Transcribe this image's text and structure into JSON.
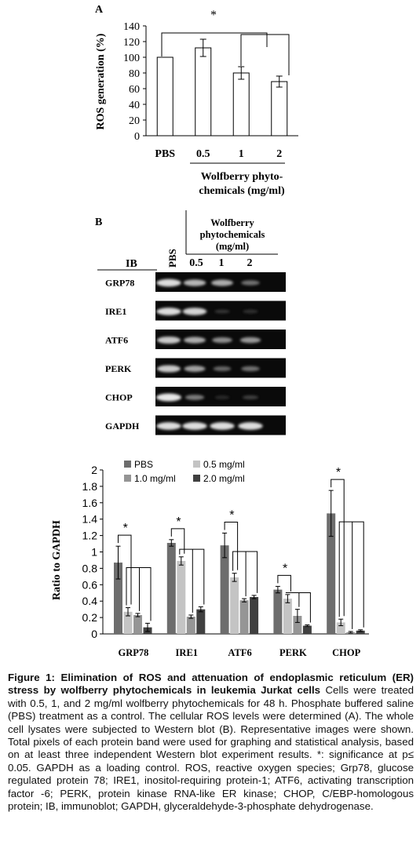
{
  "panel_a": {
    "label": "A",
    "significance": "*",
    "chart_data": {
      "type": "bar",
      "categories": [
        "PBS",
        "0.5",
        "1",
        "2"
      ],
      "values": [
        100,
        112,
        80,
        69
      ],
      "errors": [
        0,
        11,
        8,
        7
      ],
      "title": "",
      "xlabel_lines": [
        "Wolfberry phyto-",
        "chemicals (mg/ml)"
      ],
      "ylabel": "ROS generation (%)",
      "yticks": [
        "0",
        "20",
        "40",
        "60",
        "80",
        "100",
        "120",
        "140"
      ],
      "ylim": [
        0,
        140
      ],
      "grid": false
    }
  },
  "panel_b": {
    "label": "B",
    "ib_label": "IB",
    "pbs_label": "PBS",
    "treatment_lines": [
      "Wolfberry",
      "phytochemicals",
      "(mg/ml)"
    ],
    "doses": [
      "0.5",
      "1",
      "2"
    ],
    "blots": [
      {
        "name": "GRP78",
        "intensities": [
          0.95,
          0.75,
          0.7,
          0.4
        ]
      },
      {
        "name": "IRE1",
        "intensities": [
          0.95,
          0.9,
          0.1,
          0.08
        ]
      },
      {
        "name": "ATF6",
        "intensities": [
          0.85,
          0.7,
          0.55,
          0.6
        ]
      },
      {
        "name": "PERK",
        "intensities": [
          0.85,
          0.65,
          0.35,
          0.4
        ]
      },
      {
        "name": "CHOP",
        "intensities": [
          1.0,
          0.45,
          0.05,
          0.15
        ]
      },
      {
        "name": "GAPDH",
        "intensities": [
          0.95,
          0.95,
          0.95,
          0.95
        ]
      }
    ]
  },
  "panel_c": {
    "significance": "*",
    "chart_data": {
      "type": "bar",
      "categories": [
        "GRP78",
        "IRE1",
        "ATF6",
        "PERK",
        "CHOP"
      ],
      "series": [
        {
          "name": "PBS",
          "color": "#6d6d6d",
          "values": [
            0.87,
            1.11,
            1.08,
            0.54,
            1.47
          ],
          "errors": [
            0.2,
            0.04,
            0.15,
            0.04,
            0.28
          ]
        },
        {
          "name": "0.5 mg/ml",
          "color": "#c4c4c4",
          "values": [
            0.27,
            0.89,
            0.69,
            0.43,
            0.14
          ],
          "errors": [
            0.05,
            0.05,
            0.05,
            0.05,
            0.04
          ]
        },
        {
          "name": "1.0 mg/ml",
          "color": "#959595",
          "values": [
            0.23,
            0.21,
            0.41,
            0.22,
            0.02
          ],
          "errors": [
            0.02,
            0.02,
            0.02,
            0.08,
            0.01
          ]
        },
        {
          "name": "2.0 mg/ml",
          "color": "#404040",
          "values": [
            0.08,
            0.3,
            0.45,
            0.1,
            0.04
          ],
          "errors": [
            0.05,
            0.03,
            0.02,
            0.01,
            0.01
          ]
        }
      ],
      "ylabel": "Ratio to GAPDH",
      "yticks": [
        "0",
        "0.2",
        "0.4",
        "0.6",
        "0.8",
        "1",
        "1.2",
        "1.4",
        "1.6",
        "1.8",
        "2"
      ],
      "ylim": [
        0,
        2
      ],
      "legend": "top",
      "grid": false
    }
  },
  "caption": {
    "title": "Figure 1: Elimination of ROS and attenuation of endoplasmic reticulum (ER) stress by wolfberry phytochemicals in leukemia Jurkat cells",
    "body": " Cells were treated with 0.5, 1, and 2 mg/ml wolfberry phytochemicals for 48 h. Phosphate buffered saline (PBS) treatment as a control. The cellular ROS levels were determined (A). The whole cell lysates were subjected to Western blot (B). Representative images were shown. Total pixels of each protein band were used for graphing and statistical analysis, based on at least three independent Western blot experiment results. *: significance at p≤ 0.05. GAPDH as a loading control. ROS, reactive oxygen species; Grp78, glucose regulated protein 78; IRE1, inositol-requiring protein-1; ATF6, activating transcription factor -6; PERK, protein kinase RNA-like ER kinase; CHOP, C/EBP-homologous protein; IB, immunoblot; GAPDH, glyceraldehyde-3-phosphate dehydrogenase."
  }
}
